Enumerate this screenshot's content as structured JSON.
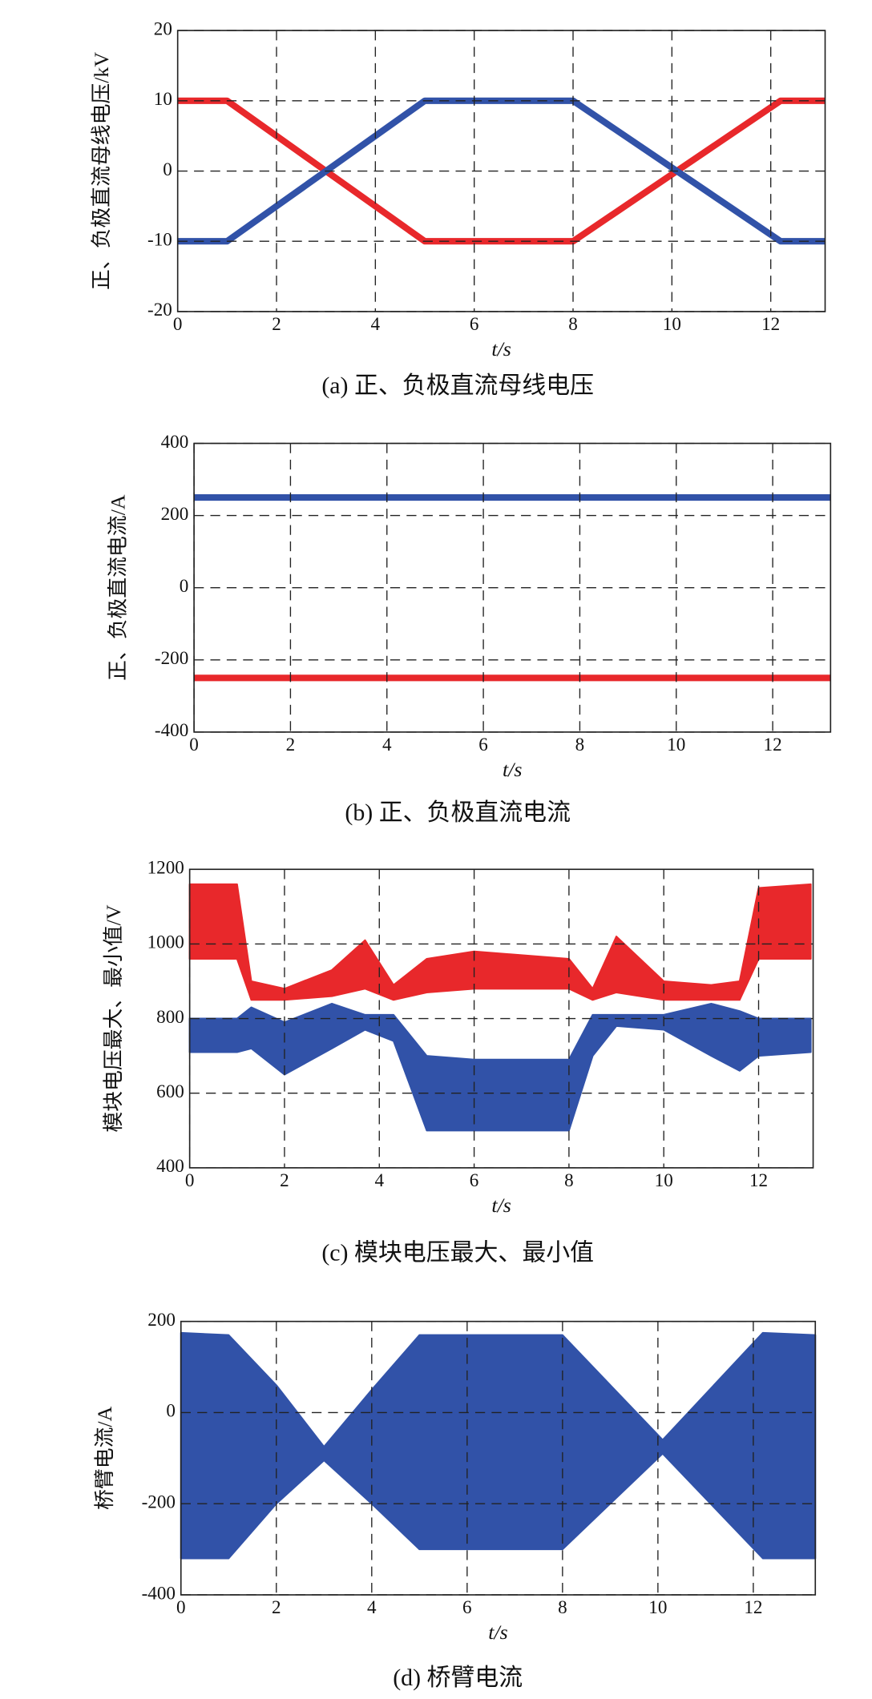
{
  "chart_data": [
    {
      "type": "line",
      "caption": "(a) 正、负极直流母线电压",
      "ylabel": "正、负极直流母线电压/kV",
      "xlabel": "t/s",
      "xlim": [
        0,
        13.1
      ],
      "xticks": [
        0,
        2,
        4,
        6,
        8,
        10,
        12
      ],
      "ylim": [
        -20,
        20
      ],
      "yticks": [
        -20,
        -10,
        0,
        10,
        20
      ],
      "grid": true,
      "series": [
        {
          "color": "#e8282b",
          "x": [
            0,
            1,
            3,
            5,
            8,
            10.1,
            12.2,
            13.1
          ],
          "values": [
            10,
            10,
            0,
            -10,
            -10,
            0,
            10,
            10
          ]
        },
        {
          "color": "#3152a8",
          "x": [
            0,
            1,
            3,
            5,
            8,
            10.1,
            12.2,
            13.1
          ],
          "values": [
            -10,
            -10,
            0,
            10,
            10,
            0,
            -10,
            -10
          ]
        }
      ]
    },
    {
      "type": "line",
      "caption": "(b) 正、负极直流电流",
      "ylabel": "正、负极直流电流/A",
      "xlabel": "t/s",
      "xlim": [
        0,
        13.2
      ],
      "xticks": [
        0,
        2,
        4,
        6,
        8,
        10,
        12
      ],
      "ylim": [
        -400,
        400
      ],
      "yticks": [
        -400,
        -200,
        0,
        200,
        400
      ],
      "grid": true,
      "series": [
        {
          "color": "#3152a8",
          "x": [
            0,
            13.2
          ],
          "values": [
            250,
            250
          ]
        },
        {
          "color": "#e8282b",
          "x": [
            0,
            13.2
          ],
          "values": [
            -250,
            -250
          ]
        }
      ]
    },
    {
      "type": "band",
      "caption": "(c) 模块电压最大、最小值",
      "ylabel": "模块电压最大、最小值/V",
      "xlabel": "t/s",
      "xlim": [
        0,
        13.15
      ],
      "xticks": [
        0,
        2,
        4,
        6,
        8,
        10,
        12
      ],
      "ylim": [
        400,
        1200
      ],
      "yticks": [
        400,
        600,
        800,
        1000,
        1200
      ],
      "grid": true,
      "series": [
        {
          "color": "#e8282b",
          "x": [
            0,
            1,
            1.3,
            2,
            3,
            3.7,
            4.3,
            5,
            6,
            7,
            8,
            8.5,
            9,
            10,
            11,
            11.6,
            12,
            13.1
          ],
          "values": [
            1160,
            1160,
            900,
            880,
            930,
            1010,
            890,
            960,
            980,
            970,
            960,
            880,
            1020,
            900,
            890,
            900,
            1150,
            1160
          ],
          "lower": [
            960,
            960,
            850,
            850,
            860,
            880,
            850,
            870,
            880,
            880,
            880,
            850,
            870,
            850,
            850,
            850,
            960,
            960
          ]
        },
        {
          "color": "#3152a8",
          "x": [
            0,
            1,
            1.3,
            2,
            3,
            3.7,
            4.3,
            5,
            6,
            7,
            8,
            8.5,
            9,
            10,
            11,
            11.6,
            12,
            13.1
          ],
          "values": [
            800,
            800,
            830,
            790,
            840,
            810,
            810,
            700,
            690,
            690,
            690,
            810,
            810,
            810,
            840,
            820,
            800,
            800
          ],
          "lower": [
            710,
            710,
            720,
            650,
            720,
            770,
            740,
            500,
            500,
            500,
            500,
            700,
            780,
            770,
            700,
            660,
            700,
            710
          ]
        }
      ]
    },
    {
      "type": "band",
      "caption": "(d) 桥臂电流",
      "ylabel": "桥臂电流/A",
      "xlabel": "t/s",
      "xlim": [
        0,
        13.3
      ],
      "xticks": [
        0,
        2,
        4,
        6,
        8,
        10,
        12
      ],
      "ylim": [
        -400,
        200
      ],
      "yticks": [
        -400,
        -200,
        0,
        200
      ],
      "grid": true,
      "series": [
        {
          "color": "#3152a8",
          "x": [
            0,
            1,
            2,
            3,
            4,
            5,
            8,
            10.1,
            12.2,
            13.3
          ],
          "values": [
            175,
            170,
            60,
            -75,
            50,
            170,
            170,
            -60,
            175,
            170
          ],
          "lower": [
            -320,
            -320,
            -200,
            -105,
            -200,
            -300,
            -300,
            -90,
            -320,
            -320
          ]
        }
      ]
    }
  ]
}
